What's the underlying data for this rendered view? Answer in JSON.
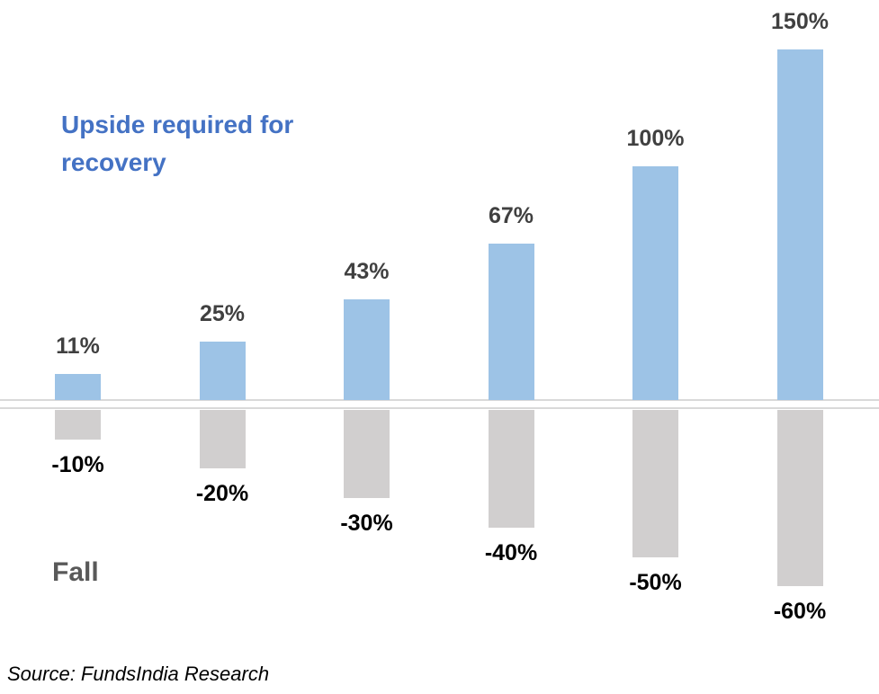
{
  "chart_data": {
    "type": "bar",
    "title": "Upside required for recovery",
    "fall_series_title": "Fall",
    "source": "Source: FundsIndia Research",
    "categories": [
      "-10%",
      "-20%",
      "-30%",
      "-40%",
      "-50%",
      "-60%"
    ],
    "series": [
      {
        "name": "Upside required for recovery",
        "values": [
          11,
          25,
          43,
          67,
          100,
          150
        ],
        "labels": [
          "11%",
          "25%",
          "43%",
          "67%",
          "100%",
          "150%"
        ],
        "color": "#9DC3E6",
        "label_color": "#404040"
      },
      {
        "name": "Fall",
        "values": [
          -10,
          -20,
          -30,
          -40,
          -50,
          -60
        ],
        "labels": [
          "-10%",
          "-20%",
          "-30%",
          "-40%",
          "-50%",
          "-60%"
        ],
        "color": "#D1CFCF",
        "label_color": "#000000"
      }
    ],
    "legend_position": "none",
    "grid": false,
    "baseline": 0,
    "data_labels": true
  },
  "colors": {
    "title_text": "#4472C4",
    "fall_title_text": "#595959",
    "axis_line": "#D9D9D9",
    "background": "#FFFFFF"
  }
}
